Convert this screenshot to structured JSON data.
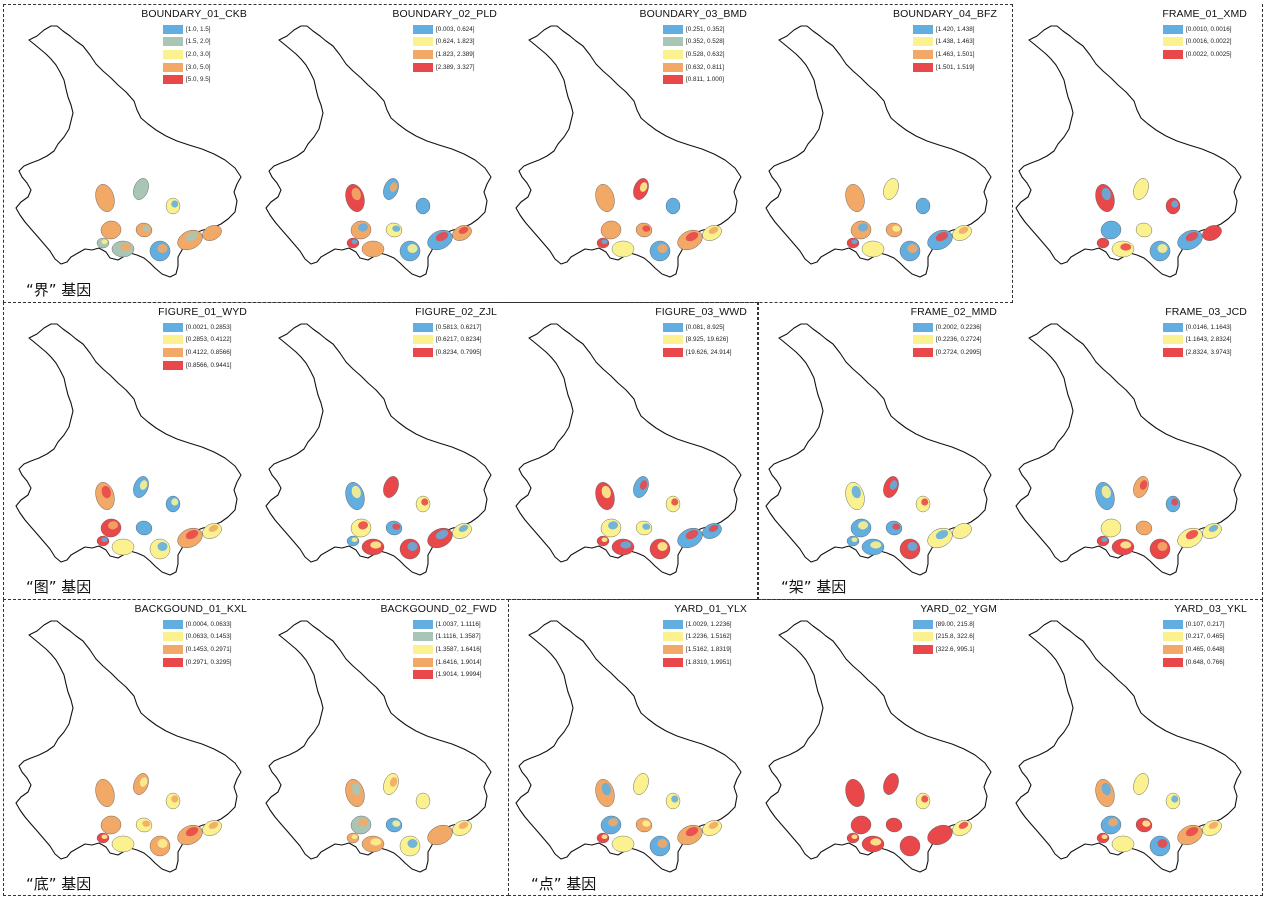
{
  "colors": {
    "blue": "#62aee0",
    "gray": "#a9c5b5",
    "yellow": "#fbf18f",
    "orange": "#f2a866",
    "red": "#e9484a"
  },
  "captions": [
    "“界” 基因",
    "“图” 基因",
    "“架” 基因",
    "“底” 基因",
    "“点” 基因"
  ],
  "panels": [
    {
      "title": "BOUNDARY_01_CKB",
      "legend": [
        {
          "color": "blue",
          "label": "[1.0,  1.5]"
        },
        {
          "color": "gray",
          "label": "[1.5,  2.0]"
        },
        {
          "color": "yellow",
          "label": "[2.0,  3.0]"
        },
        {
          "color": "orange",
          "label": "[3.0,  5.0]"
        },
        {
          "color": "red",
          "label": "[5.0,  9.5]"
        }
      ]
    },
    {
      "title": "BOUNDARY_02_PLD",
      "legend": [
        {
          "color": "blue",
          "label": "[0.003,  0.624]"
        },
        {
          "color": "yellow",
          "label": "[0.624,  1.823]"
        },
        {
          "color": "orange",
          "label": "[1.823,  2.389]"
        },
        {
          "color": "red",
          "label": "[2.389,  3.327]"
        }
      ]
    },
    {
      "title": "BOUNDARY_03_BMD",
      "legend": [
        {
          "color": "blue",
          "label": "[0.251,  0.352]"
        },
        {
          "color": "gray",
          "label": "[0.352,  0.528]"
        },
        {
          "color": "yellow",
          "label": "[0.528,  0.632]"
        },
        {
          "color": "orange",
          "label": "[0.632,  0.811]"
        },
        {
          "color": "red",
          "label": "[0.811,  1.000]"
        }
      ]
    },
    {
      "title": "BOUNDARY_04_BFZ",
      "legend": [
        {
          "color": "blue",
          "label": "[1.420,  1.438]"
        },
        {
          "color": "yellow",
          "label": "[1.438,  1.463]"
        },
        {
          "color": "orange",
          "label": "[1.463,  1.501]"
        },
        {
          "color": "red",
          "label": "[1.501,  1.519]"
        }
      ]
    },
    {
      "title": "FRAME_01_XMD",
      "legend": [
        {
          "color": "blue",
          "label": "[0.0010,  0.0016]"
        },
        {
          "color": "yellow",
          "label": "[0.0016,  0.0022]"
        },
        {
          "color": "red",
          "label": "[0.0022,  0.0025]"
        }
      ]
    },
    {
      "title": "FIGURE_01_WYD",
      "legend": [
        {
          "color": "blue",
          "label": "[0.0021,  0.2853]"
        },
        {
          "color": "yellow",
          "label": "[0.2853,  0.4122]"
        },
        {
          "color": "orange",
          "label": "[0.4122,  0.8566]"
        },
        {
          "color": "red",
          "label": "[0.8566,  0.9441]"
        }
      ]
    },
    {
      "title": "FIGURE_02_ZJL",
      "legend": [
        {
          "color": "blue",
          "label": "[0.5813,  0.6217]"
        },
        {
          "color": "yellow",
          "label": "[0.6217,  0.8234]"
        },
        {
          "color": "red",
          "label": "[0.8234,  0.7995]"
        }
      ]
    },
    {
      "title": "FIGURE_03_WWD",
      "legend": [
        {
          "color": "blue",
          "label": "[0.081,  8.925]"
        },
        {
          "color": "yellow",
          "label": "[8.925,  19.626]"
        },
        {
          "color": "red",
          "label": "[19.626,  24.914]"
        }
      ]
    },
    {
      "title": "FRAME_02_MMD",
      "legend": [
        {
          "color": "blue",
          "label": "[0.2002,  0.2236]"
        },
        {
          "color": "yellow",
          "label": "[0.2236,  0.2724]"
        },
        {
          "color": "red",
          "label": "[0.2724,  0.2995]"
        }
      ]
    },
    {
      "title": "FRAME_03_JCD",
      "legend": [
        {
          "color": "blue",
          "label": "[0.0146,  1.1643]"
        },
        {
          "color": "yellow",
          "label": "[1.1643,  2.8324]"
        },
        {
          "color": "red",
          "label": "[2.8324,  3.9743]"
        }
      ]
    },
    {
      "title": "BACKGOUND_01_KXL",
      "legend": [
        {
          "color": "blue",
          "label": "[0.0004,  0.0633]"
        },
        {
          "color": "yellow",
          "label": "[0.0633,  0.1453]"
        },
        {
          "color": "orange",
          "label": "[0.1453,  0.2971]"
        },
        {
          "color": "red",
          "label": "[0.2971,  0.3295]"
        }
      ]
    },
    {
      "title": "BACKGOUND_02_FWD",
      "legend": [
        {
          "color": "blue",
          "label": "[1.0037,  1.1116]"
        },
        {
          "color": "gray",
          "label": "[1.1116,  1.3587]"
        },
        {
          "color": "yellow",
          "label": "[1.3587,  1.6416]"
        },
        {
          "color": "orange",
          "label": "[1.6416,  1.9014]"
        },
        {
          "color": "red",
          "label": "[1.9014,  1.9994]"
        }
      ]
    },
    {
      "title": "YARD_01_YLX",
      "legend": [
        {
          "color": "blue",
          "label": "[1.0029,  1.2236]"
        },
        {
          "color": "yellow",
          "label": "[1.2236,  1.5162]"
        },
        {
          "color": "orange",
          "label": "[1.5162,  1.8319]"
        },
        {
          "color": "red",
          "label": "[1.8319,  1.9951]"
        }
      ]
    },
    {
      "title": "YARD_02_YGM",
      "legend": [
        {
          "color": "blue",
          "label": "[89.00,  215.8]"
        },
        {
          "color": "yellow",
          "label": "[215.8,  322.6]"
        },
        {
          "color": "red",
          "label": "[322.6,  995.1]"
        }
      ]
    },
    {
      "title": "YARD_03_YKL",
      "legend": [
        {
          "color": "blue",
          "label": "[0.107,  0.217]"
        },
        {
          "color": "yellow",
          "label": "[0.217,  0.465]"
        },
        {
          "color": "orange",
          "label": "[0.465,  0.648]"
        },
        {
          "color": "red",
          "label": "[0.648,  0.766]"
        }
      ]
    }
  ]
}
